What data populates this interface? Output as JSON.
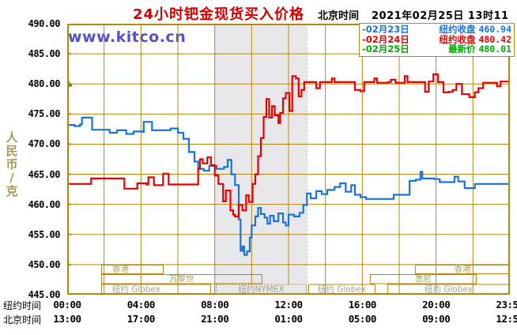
{
  "header": {
    "title": "24小时钯金现货买入价格",
    "clock_label": "北京时间",
    "datetime": "2021年02月25日 13时11分"
  },
  "watermark": "www.kitco.cn",
  "legend": {
    "items": [
      {
        "marker": "-",
        "date": "02月23日",
        "label": "纽约收盘",
        "value": "460.94",
        "color": "#1874DC"
      },
      {
        "marker": "-",
        "date": "02月24日",
        "label": "纽约收盘",
        "value": "480.42",
        "color": "#E80000"
      },
      {
        "marker": "-",
        "date": "02月25日",
        "label": "最新价",
        "value": "480.01",
        "color": "#00A800"
      }
    ]
  },
  "y_axis": {
    "unit": "人民币/克",
    "labels": [
      "490.00",
      "485.00",
      "480.00",
      "475.00",
      "470.00",
      "465.00",
      "460.00",
      "455.00",
      "450.00",
      "445.00"
    ]
  },
  "x_axis": {
    "ny_label": "纽约时间",
    "bj_label": "北京时间",
    "tick_hours": [
      0,
      4,
      8,
      12,
      16,
      20,
      24
    ],
    "ny_times": [
      "00:00",
      "04:00",
      "08:00",
      "12:00",
      "16:00",
      "20:00",
      "23:59"
    ],
    "bj_times": [
      "13:00",
      "17:00",
      "21:00",
      "01:00",
      "05:00",
      "09:00",
      "12:59"
    ]
  },
  "sessions": {
    "rows": [
      {
        "boxes": [
          {
            "label": "香港",
            "start": 1.84,
            "end": 5.23,
            "align": "left"
          },
          {
            "label": "香港",
            "start": 18.86,
            "end": 24,
            "align": "center"
          }
        ]
      },
      {
        "boxes": [
          {
            "label": "苏黎世",
            "start": 1.84,
            "end": 10.58,
            "align": "center"
          },
          {
            "label": "悉尼",
            "start": 16.41,
            "end": 22.2,
            "align": "center"
          }
        ]
      },
      {
        "boxes": [
          {
            "label": "纽约 Globex",
            "start": 1.84,
            "end": 7.8,
            "align": "left"
          },
          {
            "label": "纽约NYMEX",
            "start": 8.06,
            "end": 12.99,
            "align": "center",
            "style": "dashed"
          },
          {
            "label": "纽约 Globex",
            "start": 13.07,
            "end": 16.71,
            "align": "center"
          },
          {
            "label": "纽约 Globex",
            "start": 17.36,
            "end": 24,
            "align": "center"
          }
        ]
      }
    ]
  },
  "colors": {
    "grid": "#B8860B",
    "frame": "#B8860B",
    "band": "#E8E8EC",
    "band_edge": "#BBBBBB",
    "title": "#D40000",
    "watermark": "#5252CE",
    "unit_text": "#A8985A",
    "session_text": "#A8A060",
    "session_text_muted": "#A2A28C",
    "session_border": "#B8860B",
    "blue": "#1874DC",
    "red": "#E80000",
    "green": "#00A800"
  },
  "chart_data": {
    "type": "line",
    "title": "24小时钯金现货买入价格",
    "ylabel": "人民币/克",
    "ylim": [
      445,
      490
    ],
    "y_step": 5,
    "x_hours": [
      0,
      24
    ],
    "grid_x_interval_hours": 2,
    "shaded_band_hours": [
      8,
      13
    ],
    "legend_position": "top-right",
    "series": [
      {
        "name": "02月23日 纽约收盘",
        "close": 460.94,
        "color": "#1874DC",
        "points": [
          [
            0,
            473.2
          ],
          [
            0.4,
            473
          ],
          [
            0.7,
            473.3
          ],
          [
            0.8,
            474.4
          ],
          [
            1.3,
            474.4
          ],
          [
            1.35,
            472.4
          ],
          [
            2,
            472.4
          ],
          [
            2.3,
            471.9
          ],
          [
            2.7,
            472.3
          ],
          [
            3.2,
            471.7
          ],
          [
            3.6,
            472.1
          ],
          [
            4.1,
            472
          ],
          [
            4.15,
            473.7
          ],
          [
            4.5,
            473.7
          ],
          [
            4.6,
            472.3
          ],
          [
            5.3,
            472.3
          ],
          [
            5.6,
            472.6
          ],
          [
            6,
            471.9
          ],
          [
            6.3,
            470.9
          ],
          [
            6.6,
            468.7
          ],
          [
            6.9,
            467.1
          ],
          [
            7.1,
            465.9
          ],
          [
            7.4,
            465.6
          ],
          [
            7.7,
            466.4
          ],
          [
            8.1,
            465.9
          ],
          [
            8.5,
            466.2
          ],
          [
            8.7,
            467.4
          ],
          [
            8.9,
            465
          ],
          [
            9.1,
            463.2
          ],
          [
            9.3,
            457.5
          ],
          [
            9.4,
            452.3
          ],
          [
            9.5,
            453
          ],
          [
            9.6,
            451.6
          ],
          [
            9.75,
            452.2
          ],
          [
            9.9,
            454.5
          ],
          [
            10,
            456.5
          ],
          [
            10.2,
            458
          ],
          [
            10.35,
            459.4
          ],
          [
            10.5,
            458.4
          ],
          [
            10.7,
            457.8
          ],
          [
            10.85,
            456.8
          ],
          [
            11,
            458.1
          ],
          [
            11.2,
            457.2
          ],
          [
            11.45,
            458.5
          ],
          [
            11.7,
            457
          ],
          [
            11.85,
            456.5
          ],
          [
            12,
            458.3
          ],
          [
            12.3,
            458
          ],
          [
            12.6,
            458.6
          ],
          [
            12.8,
            459.9
          ],
          [
            13,
            461.8
          ],
          [
            13.2,
            461
          ],
          [
            13.5,
            462.2
          ],
          [
            13.8,
            461.7
          ],
          [
            14.1,
            462.4
          ],
          [
            14.5,
            462.9
          ],
          [
            14.8,
            463.5
          ],
          [
            15.1,
            462.1
          ],
          [
            15.4,
            463.2
          ],
          [
            15.6,
            461.6
          ],
          [
            15.9,
            461.2
          ],
          [
            16.2,
            460.9
          ],
          [
            17.6,
            460.9
          ],
          [
            17.7,
            461.6
          ],
          [
            18.5,
            461.6
          ],
          [
            18.56,
            463.9
          ],
          [
            18.9,
            464.1
          ],
          [
            19.15,
            465.4
          ],
          [
            19.25,
            464.3
          ],
          [
            19.9,
            464.2
          ],
          [
            20.2,
            463.7
          ],
          [
            20.9,
            463.7
          ],
          [
            21,
            464.6
          ],
          [
            21.2,
            463.8
          ],
          [
            21.55,
            462.7
          ],
          [
            22,
            462.7
          ],
          [
            22.1,
            463.4
          ],
          [
            23.98,
            463.4
          ]
        ]
      },
      {
        "name": "02月24日 纽约收盘",
        "close": 480.42,
        "color": "#E80000",
        "points": [
          [
            0,
            463.4
          ],
          [
            1.2,
            463.4
          ],
          [
            1.3,
            464.3
          ],
          [
            2.9,
            464.3
          ],
          [
            3.1,
            462.6
          ],
          [
            3.6,
            462.6
          ],
          [
            3.8,
            463.5
          ],
          [
            4.3,
            463.3
          ],
          [
            4.4,
            464.5
          ],
          [
            4.6,
            464.5
          ],
          [
            4.7,
            463.2
          ],
          [
            5.1,
            463.2
          ],
          [
            5.2,
            465.1
          ],
          [
            5.4,
            465.1
          ],
          [
            5.5,
            463.3
          ],
          [
            6.9,
            463.3
          ],
          [
            7.1,
            465.9
          ],
          [
            7.2,
            467.5
          ],
          [
            7.35,
            466.8
          ],
          [
            7.6,
            467.8
          ],
          [
            7.8,
            466.5
          ],
          [
            8,
            464.8
          ],
          [
            8.2,
            463.4
          ],
          [
            8.45,
            460.5
          ],
          [
            8.6,
            462.3
          ],
          [
            8.85,
            459
          ],
          [
            9,
            458.3
          ],
          [
            9.1,
            458
          ],
          [
            9.3,
            459.9
          ],
          [
            9.5,
            459
          ],
          [
            9.7,
            461.5
          ],
          [
            9.85,
            460.4
          ],
          [
            10.05,
            463.4
          ],
          [
            10.15,
            463.4
          ],
          [
            10.2,
            465
          ],
          [
            10.35,
            468
          ],
          [
            10.5,
            471
          ],
          [
            10.65,
            474.5
          ],
          [
            10.8,
            477.5
          ],
          [
            10.95,
            474.4
          ],
          [
            11.1,
            476.3
          ],
          [
            11.25,
            474.8
          ],
          [
            11.45,
            473.5
          ],
          [
            11.55,
            475.2
          ],
          [
            11.7,
            477.6
          ],
          [
            11.85,
            478.5
          ],
          [
            12.05,
            475.5
          ],
          [
            12.2,
            481.3
          ],
          [
            12.4,
            480.9
          ],
          [
            12.55,
            477.9
          ],
          [
            12.7,
            479
          ],
          [
            12.85,
            480.3
          ],
          [
            13.2,
            480.3
          ],
          [
            13.5,
            479.3
          ],
          [
            13.7,
            480.3
          ],
          [
            14.2,
            480.3
          ],
          [
            14.35,
            480.9
          ],
          [
            14.5,
            480.3
          ],
          [
            15.3,
            480.3
          ],
          [
            15.6,
            479
          ],
          [
            15.9,
            478.8
          ],
          [
            16.1,
            480.3
          ],
          [
            16.5,
            480.3
          ],
          [
            16.65,
            480.9
          ],
          [
            16.8,
            480.2
          ],
          [
            17.4,
            480.3
          ],
          [
            17.55,
            480.7
          ],
          [
            17.8,
            480.2
          ],
          [
            18.3,
            481.3
          ],
          [
            18.45,
            480.3
          ],
          [
            19.2,
            480.3
          ],
          [
            19.4,
            478.7
          ],
          [
            19.6,
            480.4
          ],
          [
            19.85,
            481.6
          ],
          [
            20.1,
            480.3
          ],
          [
            20.4,
            478.6
          ],
          [
            20.7,
            478.7
          ],
          [
            20.9,
            479
          ],
          [
            21.1,
            480
          ],
          [
            21.4,
            478.3
          ],
          [
            21.8,
            477.8
          ],
          [
            22.1,
            478.6
          ],
          [
            22.3,
            479.3
          ],
          [
            22.55,
            480.2
          ],
          [
            23,
            480.2
          ],
          [
            23.3,
            479.6
          ],
          [
            23.5,
            480.4
          ],
          [
            23.98,
            480.4
          ]
        ]
      },
      {
        "name": "02月25日 最新价",
        "close": 480.01,
        "color": "#00A800",
        "points": [
          [
            0,
            480.3
          ],
          [
            0.08,
            479.7
          ],
          [
            0.2,
            480
          ]
        ]
      }
    ]
  }
}
